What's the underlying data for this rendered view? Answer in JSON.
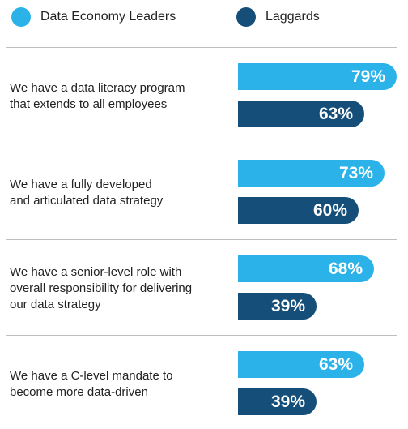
{
  "chart_data": {
    "type": "bar",
    "orientation": "horizontal",
    "categories": [
      [
        "We have a data literacy program",
        "that extends to all employees"
      ],
      [
        "We have a fully developed",
        "and articulated data strategy"
      ],
      [
        "We have a senior-level role with",
        "overall responsibility for delivering",
        "our data strategy"
      ],
      [
        "We have a C-level mandate to",
        "become more data-driven"
      ]
    ],
    "series": [
      {
        "name": "Data Economy Leaders",
        "color": "#2bb3e9",
        "values": [
          79,
          73,
          68,
          63
        ],
        "labels": [
          "79%",
          "73%",
          "68%",
          "63%"
        ]
      },
      {
        "name": "Laggards",
        "color": "#154e78",
        "values": [
          63,
          60,
          39,
          39
        ],
        "labels": [
          "63%",
          "60%",
          "39%",
          "39%"
        ]
      }
    ],
    "xlim": [
      0,
      100
    ],
    "legend": "top",
    "grid": false
  }
}
